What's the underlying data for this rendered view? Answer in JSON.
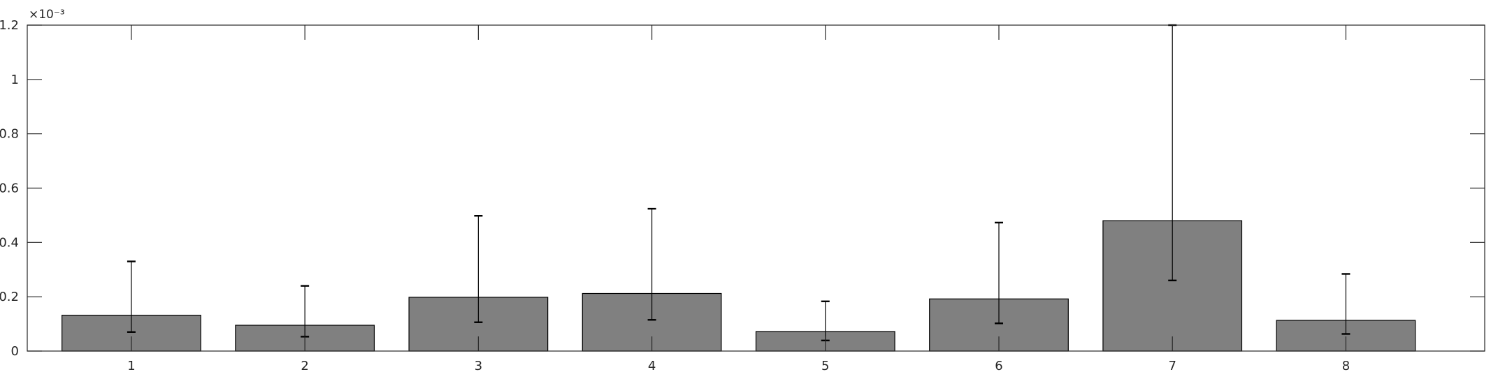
{
  "chart_data": {
    "type": "bar",
    "title": "",
    "xlabel": "",
    "ylabel": "",
    "y_exponent_label": "×10⁻³",
    "categories": [
      "1",
      "2",
      "3",
      "4",
      "5",
      "6",
      "7",
      "8"
    ],
    "values": [
      0.132,
      0.095,
      0.198,
      0.212,
      0.072,
      0.192,
      0.48,
      0.113
    ],
    "error_lower": [
      0.07,
      0.053,
      0.106,
      0.115,
      0.039,
      0.102,
      0.26,
      0.063
    ],
    "error_upper": [
      0.33,
      0.24,
      0.498,
      0.524,
      0.183,
      0.473,
      1.2,
      0.284
    ],
    "xlim": [
      0.4,
      8.8
    ],
    "ylim": [
      0,
      1.2
    ],
    "yticks": [
      0,
      0.2,
      0.4,
      0.6,
      0.8,
      1,
      1.2
    ],
    "ytick_labels": [
      "0",
      "0.2",
      "0.4",
      "0.6",
      "0.8",
      "1",
      "1.2"
    ],
    "grid": false,
    "colors": {
      "bar_fill": "#808080",
      "bar_edge": "#000000",
      "axis": "#262626",
      "errorbar": "#000000"
    }
  }
}
